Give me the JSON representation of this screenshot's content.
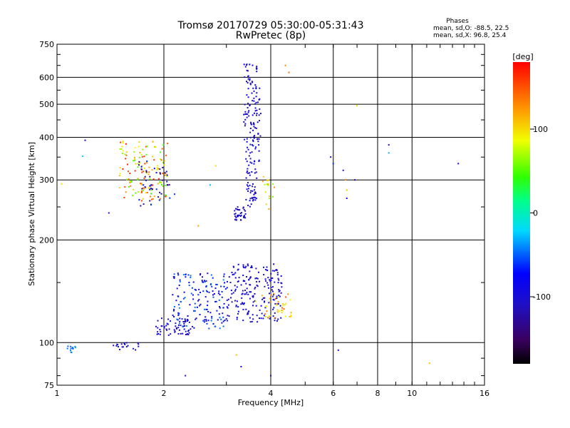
{
  "chart_data": {
    "type": "scatter",
    "title": "Tromsø 20170729 05:30:00-05:31:43",
    "subtitle": "RwPretec (8p)",
    "xlabel": "Frequency [MHz]",
    "ylabel": "Stationary phase Virtual Height [km]",
    "x_scale": "log",
    "y_scale": "log",
    "xlim": [
      1,
      16
    ],
    "ylim": [
      75,
      750
    ],
    "x_ticks": [
      1,
      2,
      4,
      6,
      8,
      10,
      16
    ],
    "y_ticks": [
      75,
      100,
      200,
      300,
      400,
      500,
      600,
      750
    ],
    "grid": true,
    "phase_stats": {
      "heading": "Phases",
      "line_o": "mean, sd,O: -88.5, 22.5",
      "line_x": "mean, sd,X:  96.8, 25.4"
    },
    "colorbar": {
      "label": "[deg]",
      "ticks": [
        100,
        0,
        -100
      ],
      "range": [
        -180,
        180
      ],
      "colormap": "rainbow"
    },
    "clusters": [
      {
        "x_range": [
          1.5,
          2.05
        ],
        "y_range": [
          260,
          390
        ],
        "phase_range": [
          40,
          170
        ],
        "count": 140
      },
      {
        "x_range": [
          1.7,
          2.15
        ],
        "y_range": [
          250,
          345
        ],
        "phase_range": [
          -150,
          -60
        ],
        "count": 45
      },
      {
        "x_range": [
          3.15,
          3.4
        ],
        "y_range": [
          228,
          250
        ],
        "phase_range": [
          -120,
          -90
        ],
        "count": 35
      },
      {
        "x_range": [
          3.4,
          3.65
        ],
        "y_range": [
          250,
          330
        ],
        "phase_range": [
          -115,
          -85
        ],
        "count": 45
      },
      {
        "x_range": [
          3.35,
          3.75
        ],
        "y_range": [
          330,
          660
        ],
        "phase_range": [
          -120,
          -80
        ],
        "count": 130
      },
      {
        "x_range": [
          3.8,
          4.1
        ],
        "y_range": [
          240,
          310
        ],
        "phase_range": [
          60,
          140
        ],
        "count": 18
      },
      {
        "x_range": [
          1.9,
          2.4
        ],
        "y_range": [
          105,
          118
        ],
        "phase_range": [
          -120,
          -80
        ],
        "count": 60
      },
      {
        "x_range": [
          2.1,
          3.0
        ],
        "y_range": [
          110,
          160
        ],
        "phase_range": [
          -110,
          -40
        ],
        "count": 160
      },
      {
        "x_range": [
          3.0,
          4.3
        ],
        "y_range": [
          115,
          170
        ],
        "phase_range": [
          -120,
          -80
        ],
        "count": 200
      },
      {
        "x_range": [
          3.6,
          4.6
        ],
        "y_range": [
          118,
          140
        ],
        "phase_range": [
          80,
          150
        ],
        "count": 40
      },
      {
        "x_range": [
          1.42,
          1.7
        ],
        "y_range": [
          95,
          100
        ],
        "phase_range": [
          -120,
          -90
        ],
        "count": 20
      },
      {
        "x_range": [
          1.07,
          1.14
        ],
        "y_range": [
          93,
          98
        ],
        "phase_range": [
          -60,
          -30
        ],
        "count": 12
      }
    ],
    "points": [
      {
        "x": 1.03,
        "y": 292,
        "phase": 100
      },
      {
        "x": 1.2,
        "y": 392,
        "phase": -100
      },
      {
        "x": 1.18,
        "y": 352,
        "phase": -20
      },
      {
        "x": 1.4,
        "y": 240,
        "phase": -110
      },
      {
        "x": 2.3,
        "y": 80,
        "phase": -100
      },
      {
        "x": 2.5,
        "y": 220,
        "phase": 120
      },
      {
        "x": 2.7,
        "y": 290,
        "phase": -30
      },
      {
        "x": 2.8,
        "y": 330,
        "phase": 100
      },
      {
        "x": 3.2,
        "y": 92,
        "phase": 110
      },
      {
        "x": 3.3,
        "y": 85,
        "phase": -100
      },
      {
        "x": 4.0,
        "y": 80,
        "phase": -110
      },
      {
        "x": 4.4,
        "y": 650,
        "phase": 130
      },
      {
        "x": 4.5,
        "y": 620,
        "phase": 140
      },
      {
        "x": 4.2,
        "y": 150,
        "phase": -90
      },
      {
        "x": 5.9,
        "y": 350,
        "phase": -90
      },
      {
        "x": 6.0,
        "y": 335,
        "phase": -60
      },
      {
        "x": 6.2,
        "y": 95,
        "phase": -100
      },
      {
        "x": 6.4,
        "y": 320,
        "phase": -100
      },
      {
        "x": 6.5,
        "y": 300,
        "phase": 130
      },
      {
        "x": 6.55,
        "y": 280,
        "phase": 110
      },
      {
        "x": 6.55,
        "y": 265,
        "phase": -100
      },
      {
        "x": 6.9,
        "y": 300,
        "phase": -110
      },
      {
        "x": 7.0,
        "y": 495,
        "phase": 100
      },
      {
        "x": 8.6,
        "y": 380,
        "phase": -100
      },
      {
        "x": 8.6,
        "y": 360,
        "phase": -30
      },
      {
        "x": 11.2,
        "y": 87,
        "phase": 110
      },
      {
        "x": 13.5,
        "y": 335,
        "phase": -100
      }
    ]
  }
}
